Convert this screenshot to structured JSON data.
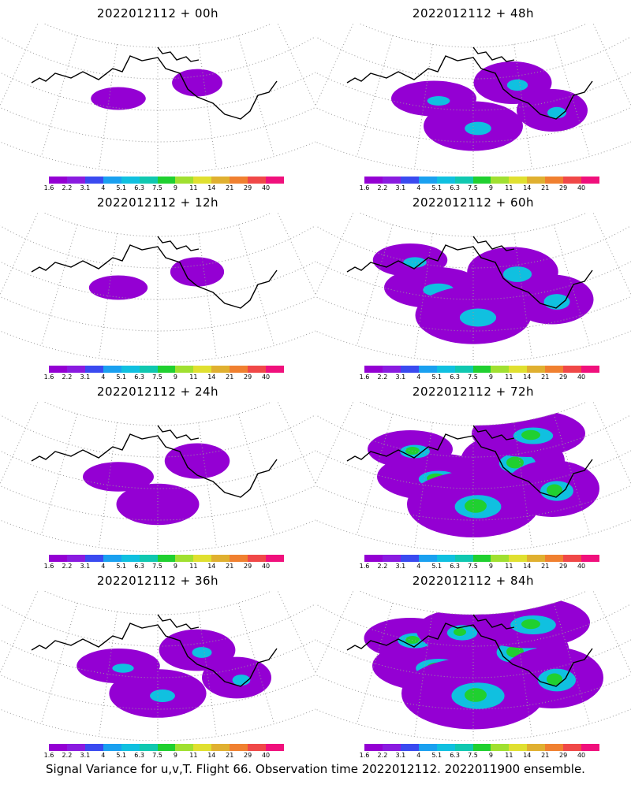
{
  "panels": [
    {
      "title": "2022012112 + 00h",
      "coverage": 0.08
    },
    {
      "title": "2022012112 + 48h",
      "coverage": 0.4
    },
    {
      "title": "2022012112 + 12h",
      "coverage": 0.12
    },
    {
      "title": "2022012112 + 60h",
      "coverage": 0.55
    },
    {
      "title": "2022012112 + 24h",
      "coverage": 0.25
    },
    {
      "title": "2022012112 + 72h",
      "coverage": 0.7
    },
    {
      "title": "2022012112 + 36h",
      "coverage": 0.38
    },
    {
      "title": "2022012112 + 84h",
      "coverage": 0.8
    }
  ],
  "colorbar": {
    "labels": [
      "1.6",
      "2.2",
      "3.1",
      "4",
      "5.1",
      "6.3",
      "7.5",
      "9",
      "11",
      "14",
      "21",
      "29",
      "40"
    ],
    "colors": [
      "#9400d3",
      "#8a1be0",
      "#3a4af0",
      "#1aa0f0",
      "#10c0e0",
      "#10c8b0",
      "#20d030",
      "#a0e030",
      "#e0e030",
      "#e0b030",
      "#f08030",
      "#f04848",
      "#f0107c"
    ]
  },
  "footer": "Signal Variance for u,v,T. Flight 66. Observation time 2022012112. 2022011900 ensemble."
}
